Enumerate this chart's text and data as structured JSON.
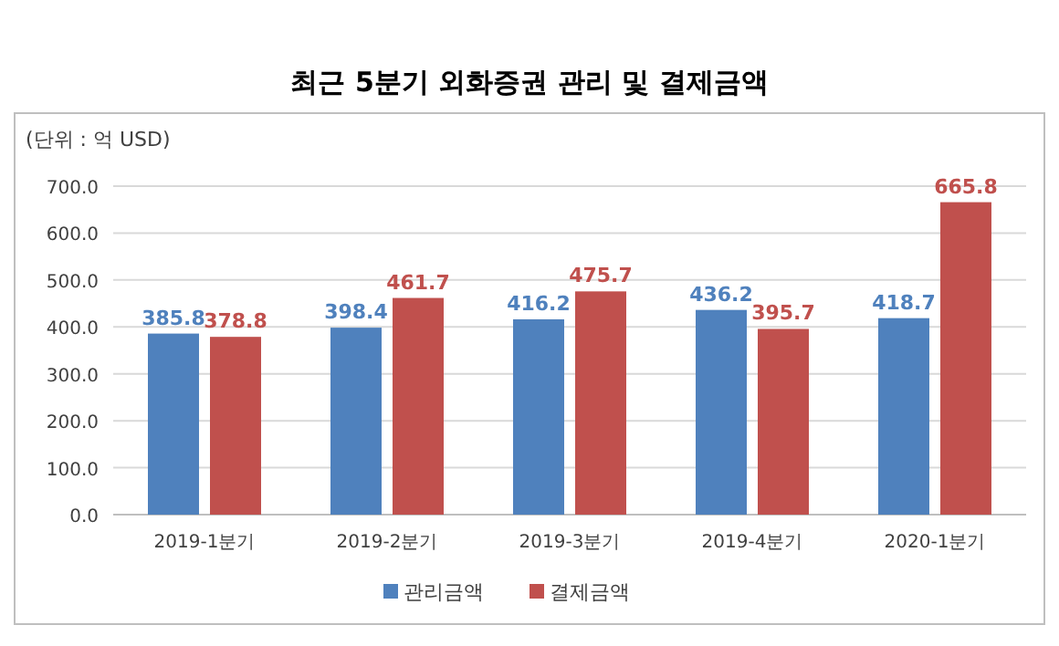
{
  "chart_data": {
    "type": "bar",
    "title": "최근 5분기 외화증권 관리 및 결제금액",
    "annotations": [
      "(단위 : 억 USD)"
    ],
    "categories": [
      "2019-1분기",
      "2019-2분기",
      "2019-3분기",
      "2019-4분기",
      "2020-1분기"
    ],
    "series": [
      {
        "name": "관리금액",
        "color": "#4f81bd",
        "values": [
          385.8,
          398.4,
          416.2,
          436.2,
          418.7
        ]
      },
      {
        "name": "결제금액",
        "color": "#c0504d",
        "values": [
          378.8,
          461.7,
          475.7,
          395.7,
          665.8
        ]
      }
    ],
    "ylim": [
      0,
      700
    ],
    "yticks": [
      {
        "value": 0,
        "label": "0.0"
      },
      {
        "value": 100,
        "label": "100.0"
      },
      {
        "value": 200,
        "label": "200.0"
      },
      {
        "value": 300,
        "label": "300.0"
      },
      {
        "value": 400,
        "label": "400.0"
      },
      {
        "value": 500,
        "label": "500.0"
      },
      {
        "value": 600,
        "label": "600.0"
      },
      {
        "value": 700,
        "label": "700.0"
      }
    ],
    "grid": "y",
    "legend": "bottom",
    "data_labels": true
  }
}
